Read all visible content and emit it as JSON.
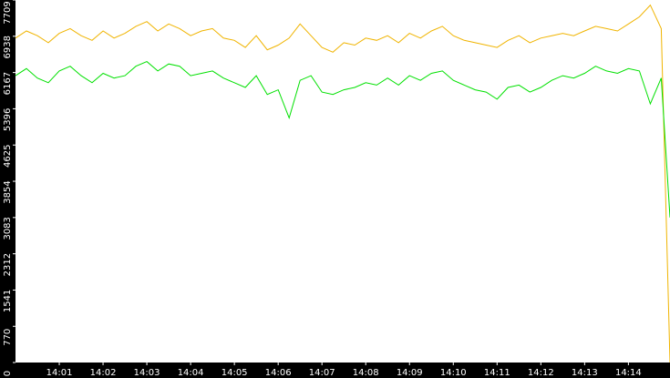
{
  "chart_data": {
    "type": "line",
    "x": [
      "14:00:00",
      "14:00:15",
      "14:00:30",
      "14:00:45",
      "14:01:00",
      "14:01:15",
      "14:01:30",
      "14:01:45",
      "14:02:00",
      "14:02:15",
      "14:02:30",
      "14:02:45",
      "14:03:00",
      "14:03:15",
      "14:03:30",
      "14:03:45",
      "14:04:00",
      "14:04:15",
      "14:04:30",
      "14:04:45",
      "14:05:00",
      "14:05:15",
      "14:05:30",
      "14:05:45",
      "14:06:00",
      "14:06:15",
      "14:06:30",
      "14:06:45",
      "14:07:00",
      "14:07:15",
      "14:07:30",
      "14:07:45",
      "14:08:00",
      "14:08:15",
      "14:08:30",
      "14:08:45",
      "14:09:00",
      "14:09:15",
      "14:09:30",
      "14:09:45",
      "14:10:00",
      "14:10:15",
      "14:10:30",
      "14:10:45",
      "14:11:00",
      "14:11:15",
      "14:11:30",
      "14:11:45",
      "14:12:00",
      "14:12:15",
      "14:12:30",
      "14:12:45",
      "14:13:00",
      "14:13:15",
      "14:13:30",
      "14:13:45",
      "14:14:00",
      "14:14:15",
      "14:14:30",
      "14:14:45",
      "14:14:57"
    ],
    "xlim": [
      "14:00:00",
      "14:14:57"
    ],
    "xticks": [
      "14:01",
      "14:02",
      "14:03",
      "14:04",
      "14:05",
      "14:06",
      "14:07",
      "14:08",
      "14:09",
      "14:10",
      "14:11",
      "14:12",
      "14:13",
      "14:14"
    ],
    "ylim": [
      0,
      7709
    ],
    "yticks": [
      0,
      770,
      1541,
      2312,
      3083,
      3854,
      4625,
      5396,
      6167,
      6938,
      7709
    ],
    "series": [
      {
        "color": "#f0b400",
        "values": [
          6900,
          7050,
          6950,
          6800,
          7000,
          7100,
          6950,
          6850,
          7050,
          6900,
          7000,
          7150,
          7250,
          7050,
          7200,
          7100,
          6950,
          7050,
          7100,
          6900,
          6850,
          6700,
          6950,
          6650,
          6750,
          6900,
          7200,
          6950,
          6700,
          6600,
          6800,
          6750,
          6900,
          6850,
          6950,
          6800,
          7000,
          6900,
          7050,
          7150,
          6950,
          6850,
          6800,
          6750,
          6700,
          6850,
          6950,
          6800,
          6900,
          6950,
          7000,
          6950,
          7050,
          7150,
          7100,
          7050,
          7200,
          7350,
          7600,
          7100,
          0
        ]
      },
      {
        "color": "#00e000",
        "values": [
          6100,
          6250,
          6050,
          5950,
          6200,
          6300,
          6100,
          5950,
          6150,
          6050,
          6100,
          6300,
          6400,
          6200,
          6350,
          6300,
          6100,
          6150,
          6200,
          6050,
          5950,
          5850,
          6100,
          5700,
          5800,
          5200,
          6000,
          6100,
          5750,
          5700,
          5800,
          5850,
          5950,
          5900,
          6050,
          5900,
          6100,
          6000,
          6150,
          6200,
          6000,
          5900,
          5800,
          5750,
          5600,
          5850,
          5900,
          5750,
          5850,
          6000,
          6100,
          6050,
          6150,
          6300,
          6200,
          6150,
          6250,
          6200,
          5500,
          6050,
          3083
        ]
      }
    ]
  }
}
